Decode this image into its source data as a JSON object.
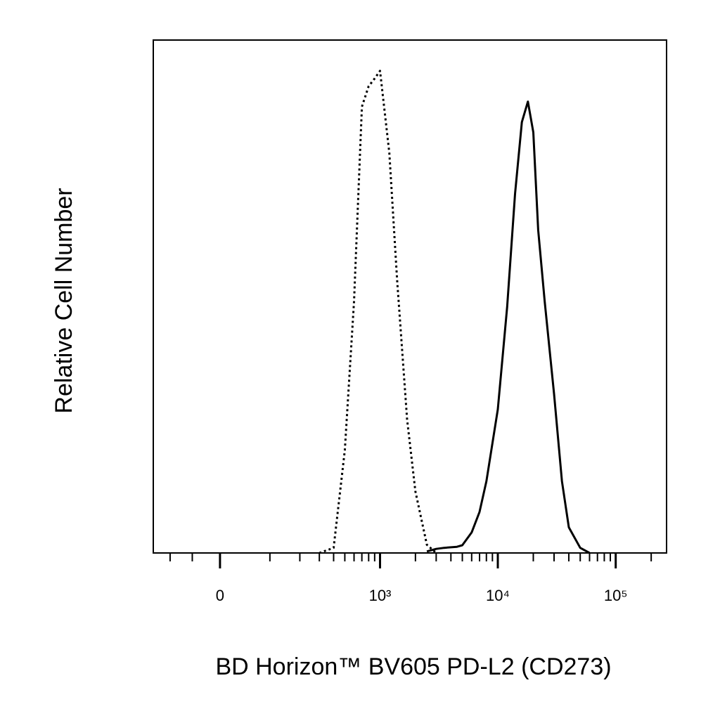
{
  "chart_data": {
    "type": "line",
    "y_label": "Relative Cell Number",
    "x_label": "BD Horizon™ BV605 PD-L2 (CD273)",
    "xscale": "biexponential",
    "xlim": [
      -150,
      270000
    ],
    "ylim": [
      0,
      100
    ],
    "xticks": [
      0,
      {
        "value": 1000,
        "label": "10³"
      },
      {
        "value": 10000,
        "label": "10⁴"
      },
      {
        "value": 100000,
        "label": "10⁵"
      }
    ],
    "xminorticks": [
      -100,
      -50,
      100,
      200,
      300,
      400,
      500,
      600,
      700,
      800,
      900,
      2000,
      3000,
      4000,
      5000,
      6000,
      7000,
      8000,
      9000,
      20000,
      30000,
      40000,
      50000,
      60000,
      70000,
      80000,
      90000,
      200000
    ],
    "series": [
      {
        "color": "#000000",
        "dashed": true,
        "x": [
          300,
          400,
          500,
          600,
          700,
          800,
          900,
          1000,
          1200,
          1400,
          1700,
          2000,
          2500,
          3000
        ],
        "values": [
          0,
          1,
          20,
          49,
          87,
          91,
          92.5,
          94,
          78,
          53,
          26,
          12,
          1.6,
          0
        ]
      },
      {
        "color": "#000000",
        "dashed": false,
        "x": [
          2500,
          3000,
          3500,
          4500,
          5000,
          6000,
          7000,
          8000,
          10000,
          12000,
          14000,
          16000,
          18000,
          20000,
          22000,
          25000,
          30000,
          35000,
          40000,
          50000,
          60000
        ],
        "values": [
          0.3,
          0.8,
          1,
          1.2,
          1.5,
          4,
          8,
          14,
          28,
          48,
          70,
          84,
          88,
          82,
          63,
          49,
          31,
          14,
          5,
          1,
          0
        ]
      }
    ]
  }
}
